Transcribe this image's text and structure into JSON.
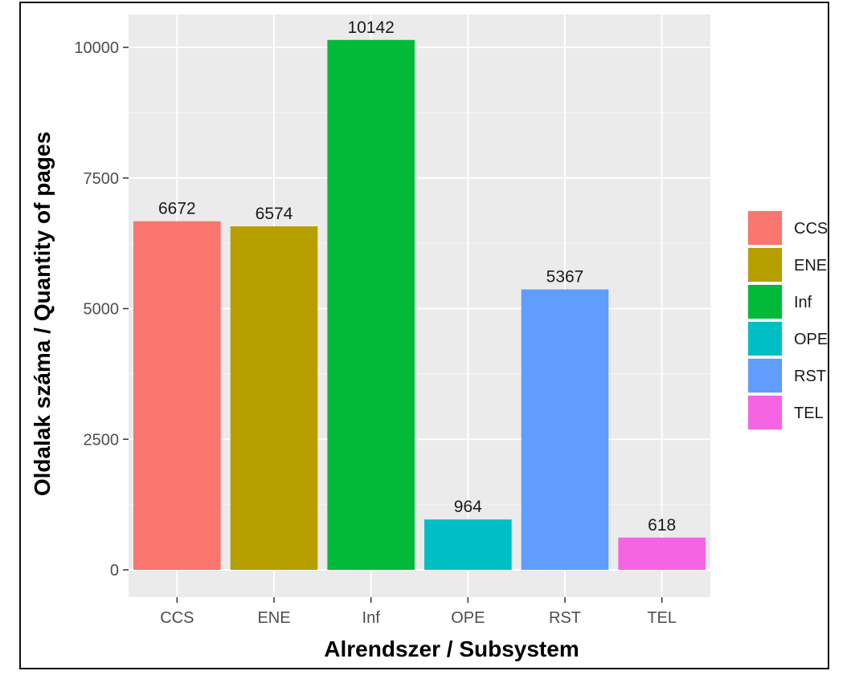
{
  "chart_data": {
    "type": "bar",
    "categories": [
      "CCS",
      "ENE",
      "Inf",
      "OPE",
      "RST",
      "TEL"
    ],
    "values": [
      6672,
      6574,
      10142,
      964,
      5367,
      618
    ],
    "data_labels": [
      "6672",
      "6574",
      "10142",
      "964",
      "5367",
      "618"
    ],
    "colors": [
      "#f8766d",
      "#b79f00",
      "#00ba38",
      "#00bfc4",
      "#619cff",
      "#f564e3"
    ],
    "xlabel": "Alrendszer / Subsystem",
    "ylabel": "Oldalak száma / Quantity of pages",
    "ylim": [
      -500,
      10800
    ],
    "yticks": [
      0,
      2500,
      5000,
      7500,
      10000
    ],
    "ytick_labels": [
      "0",
      "2500",
      "5000",
      "7500",
      "10000"
    ],
    "grid": true,
    "legend_position": "right",
    "legend": [
      "CCS",
      "ENE",
      "Inf",
      "OPE",
      "RST",
      "TEL"
    ]
  }
}
